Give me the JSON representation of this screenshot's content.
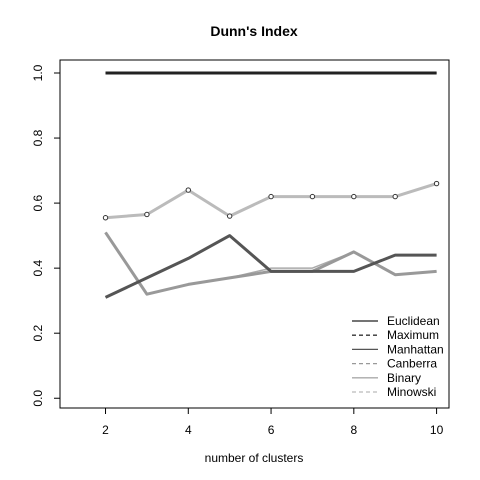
{
  "chart_data": {
    "type": "line",
    "title": "Dunn's Index",
    "xlabel": "number of clusters",
    "ylabel": "",
    "xlim": [
      0.9,
      10.3
    ],
    "ylim": [
      -0.03,
      1.04
    ],
    "x_ticks": [
      2,
      4,
      6,
      8,
      10
    ],
    "y_ticks": [
      0.0,
      0.2,
      0.4,
      0.6,
      0.8,
      1.0
    ],
    "x_tick_labels": [
      "2",
      "4",
      "6",
      "8",
      "10"
    ],
    "y_tick_labels": [
      "0.0",
      "0.2",
      "0.4",
      "0.6",
      "0.8",
      "1.0"
    ],
    "x": [
      2,
      3,
      4,
      5,
      6,
      7,
      8,
      9,
      10
    ],
    "legend_position": "bottom-right",
    "series": [
      {
        "name": "Euclidean",
        "values": [
          1.0,
          1.0,
          1.0,
          1.0,
          1.0,
          1.0,
          1.0,
          1.0,
          1.0
        ],
        "color": "#222222",
        "dash": "none",
        "width": 3,
        "markers": false
      },
      {
        "name": "Maximum",
        "values": [
          1.0,
          1.0,
          1.0,
          1.0,
          1.0,
          1.0,
          1.0,
          1.0,
          1.0
        ],
        "color": "#333333",
        "dash": "dashed",
        "width": 1.5,
        "markers": false
      },
      {
        "name": "Manhattan",
        "values": [
          0.31,
          0.37,
          0.43,
          0.5,
          0.39,
          0.39,
          0.39,
          0.44,
          0.44
        ],
        "color": "#555555",
        "dash": "none",
        "width": 3,
        "markers": false
      },
      {
        "name": "Canberra",
        "values": [
          0.51,
          0.32,
          0.35,
          0.37,
          0.39,
          0.39,
          0.45,
          0.38,
          0.39
        ],
        "color": "#999999",
        "dash": "none",
        "width": 3,
        "markers": false
      },
      {
        "name": "Binary",
        "values": [
          0.51,
          0.32,
          0.35,
          0.37,
          0.4,
          0.4,
          0.45,
          0.38,
          0.39
        ],
        "color": "#aaaaaa",
        "dash": "none",
        "width": 1.5,
        "markers": false
      },
      {
        "name": "Minowski",
        "values": [
          0.555,
          0.565,
          0.64,
          0.56,
          0.62,
          0.62,
          0.62,
          0.62,
          0.66
        ],
        "color": "#bbbbbb",
        "dash": "none",
        "width": 3,
        "markers": true
      }
    ]
  }
}
